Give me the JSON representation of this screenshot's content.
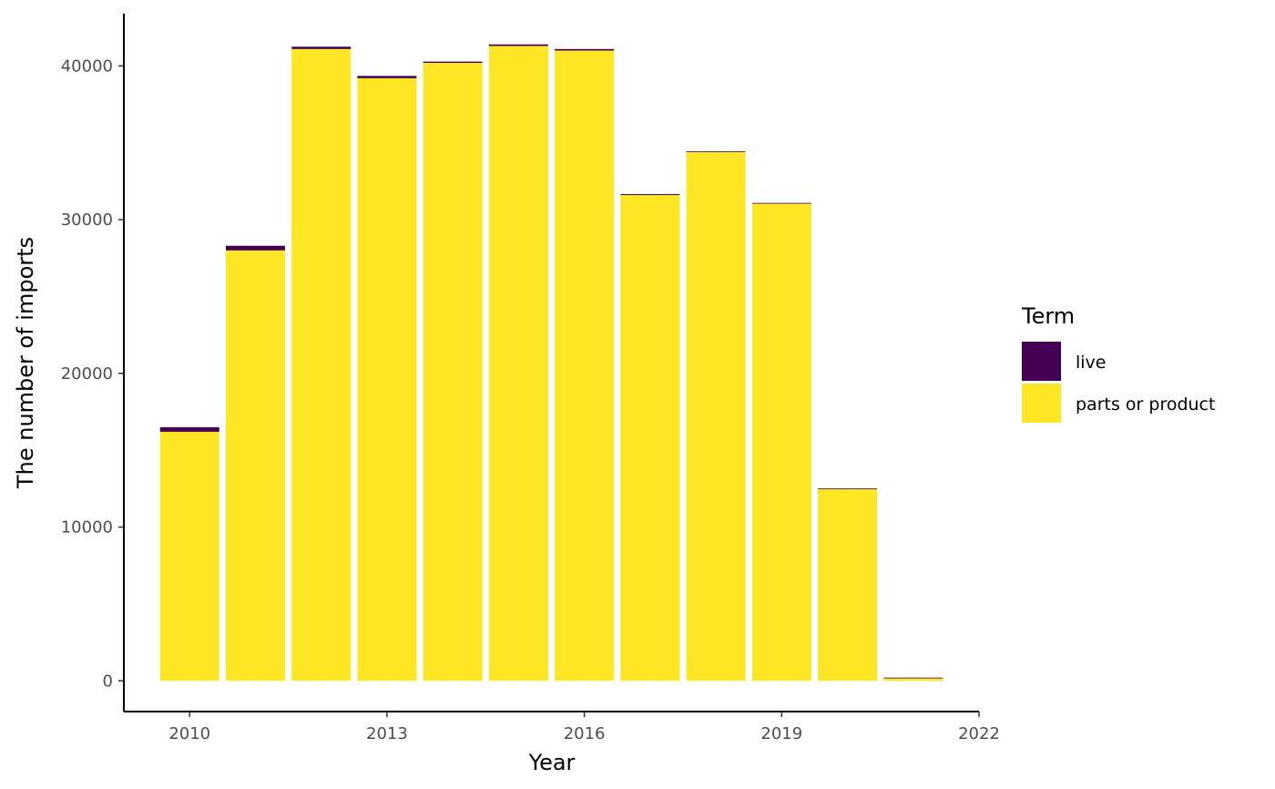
{
  "chart_data": {
    "type": "bar",
    "stacked": true,
    "xlabel": "Year",
    "ylabel": "The number of imports",
    "x": [
      2010,
      2011,
      2012,
      2013,
      2014,
      2015,
      2016,
      2017,
      2018,
      2019,
      2020,
      2021
    ],
    "series": [
      {
        "name": "parts or product",
        "color": "#FDE725",
        "values": [
          16200,
          28000,
          41100,
          39200,
          40200,
          41300,
          41000,
          31600,
          34400,
          31050,
          12500,
          200
        ]
      },
      {
        "name": "live",
        "color": "#440154",
        "values": [
          300,
          300,
          150,
          150,
          80,
          100,
          100,
          60,
          40,
          40,
          20,
          10
        ]
      }
    ],
    "xlim": [
      2009,
      2022
    ],
    "ylim": [
      -2000,
      43400
    ],
    "x_ticks": [
      2010,
      2013,
      2016,
      2019,
      2022
    ],
    "x_tick_labels": [
      "2010",
      "2013",
      "2016",
      "2019",
      "2022"
    ],
    "y_ticks": [
      0,
      10000,
      20000,
      30000,
      40000
    ],
    "y_tick_labels": [
      "0",
      "10000",
      "20000",
      "30000",
      "40000"
    ],
    "grid": false,
    "legend": {
      "title": "Term",
      "placement": "right",
      "entries": [
        {
          "label": "live",
          "color": "#440154"
        },
        {
          "label": "parts or product",
          "color": "#FDE725"
        }
      ]
    }
  }
}
